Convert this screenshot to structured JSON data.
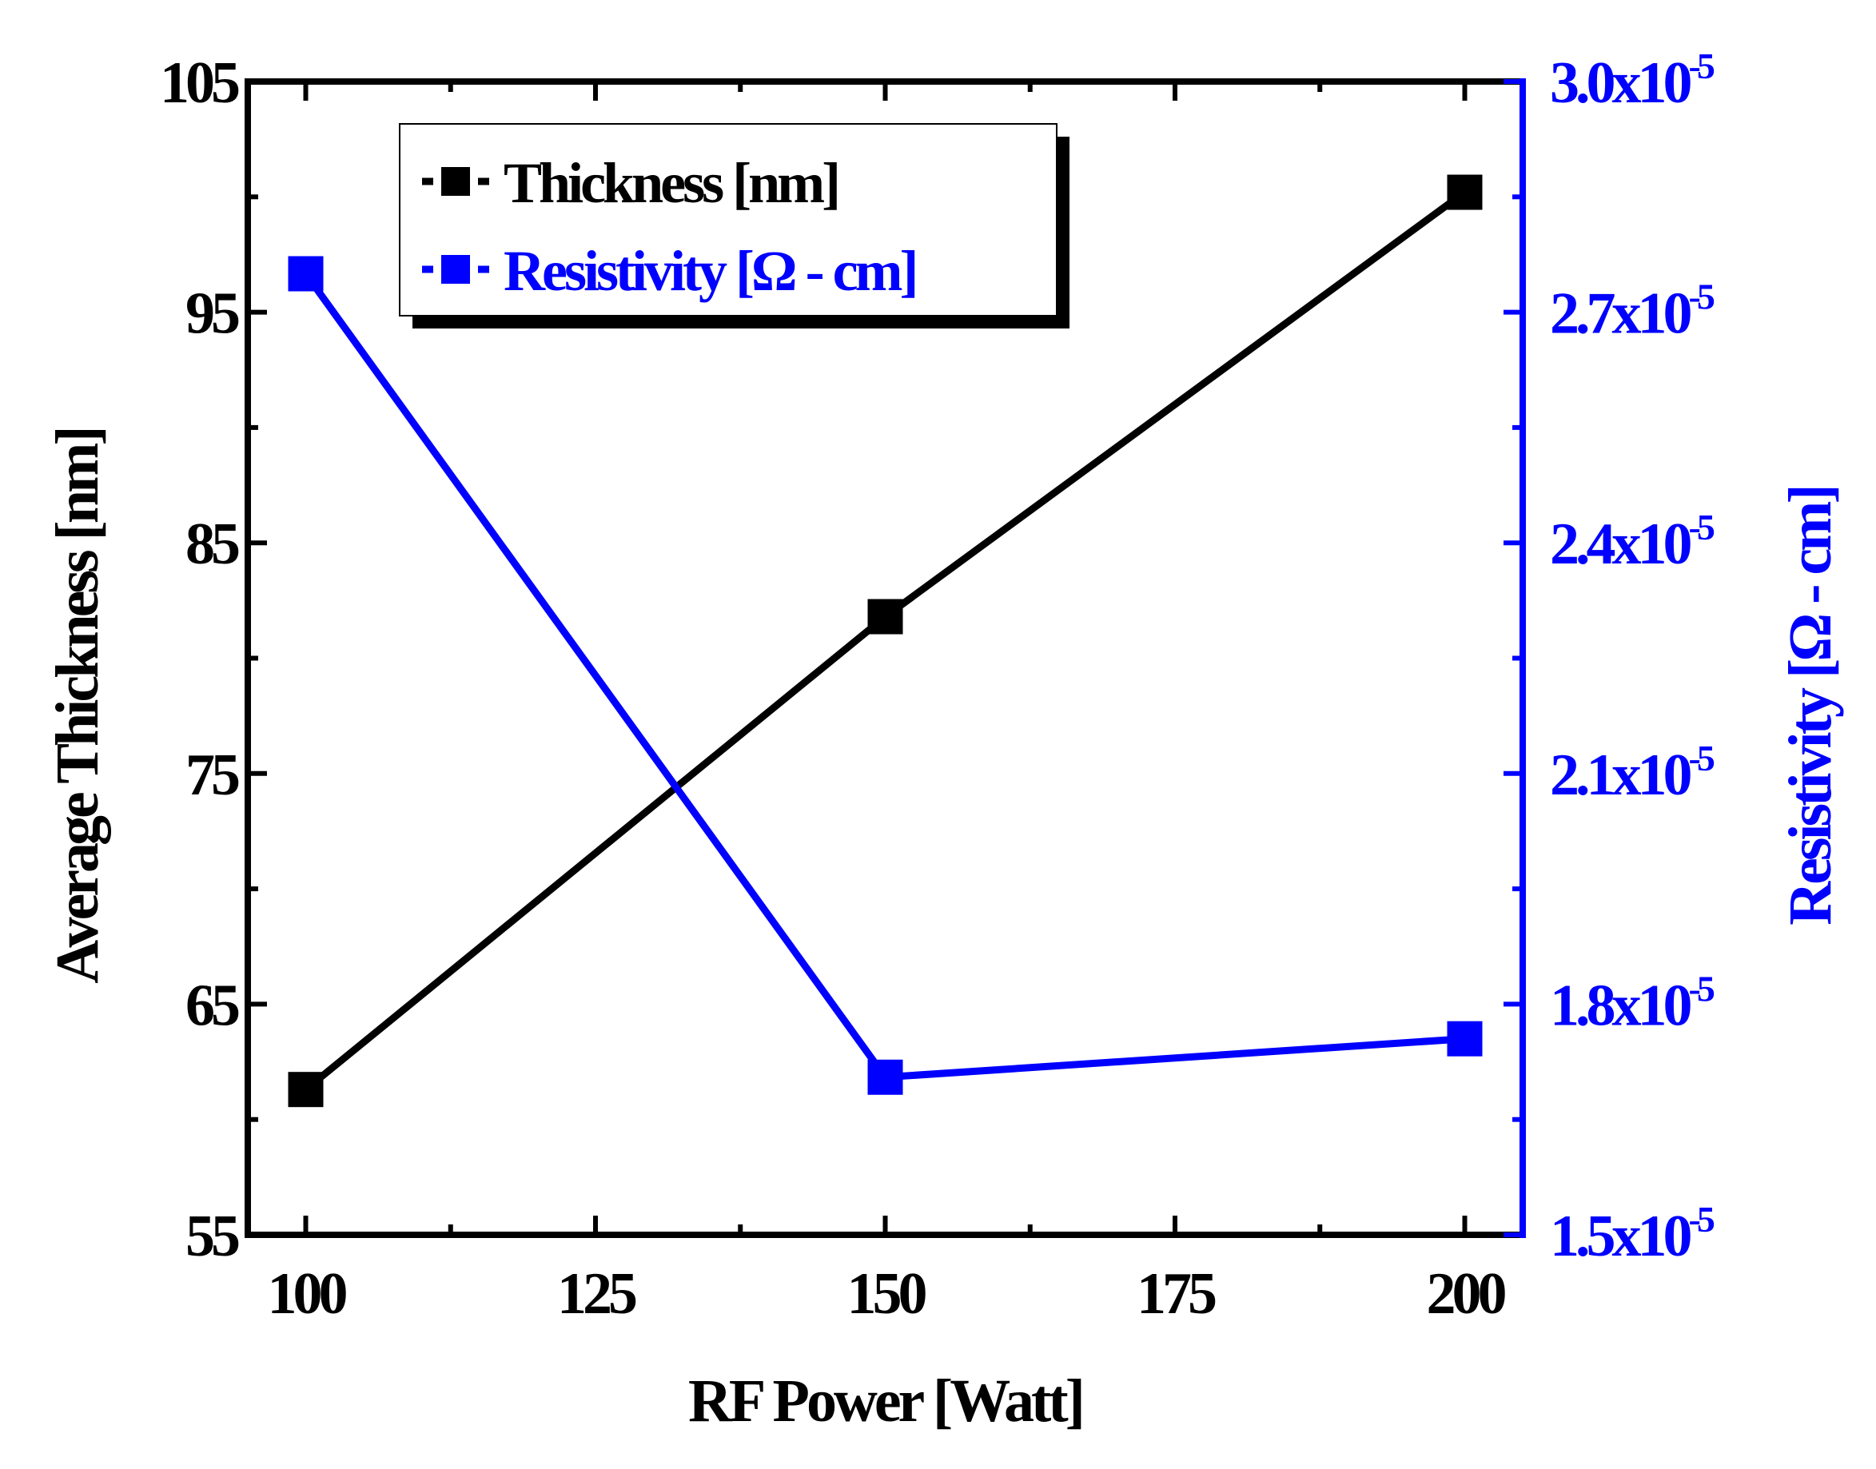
{
  "chart_data": {
    "type": "line",
    "title": "",
    "xlabel": "RF Power [Watt]",
    "x": [
      100,
      150,
      200
    ],
    "xlim": [
      95,
      205
    ],
    "xticks": [
      {
        "value": 100,
        "label": "100"
      },
      {
        "value": 125,
        "label": "125"
      },
      {
        "value": 150,
        "label": "150"
      },
      {
        "value": 175,
        "label": "175"
      },
      {
        "value": 200,
        "label": "200"
      }
    ],
    "xminor": [
      112.5,
      137.5,
      162.5,
      187.5
    ],
    "y_left": {
      "label": "Average Thickness [nm]",
      "lim": [
        55,
        105
      ],
      "ticks": [
        {
          "value": 55,
          "label": "55"
        },
        {
          "value": 65,
          "label": "65"
        },
        {
          "value": 75,
          "label": "75"
        },
        {
          "value": 85,
          "label": "85"
        },
        {
          "value": 95,
          "label": "95"
        },
        {
          "value": 105,
          "label": "105"
        }
      ],
      "minor": [
        60,
        70,
        80,
        90,
        100
      ]
    },
    "y_right": {
      "label": "Resistivity [Ω - cm]",
      "lim": [
        1.5e-05,
        3e-05
      ],
      "ticks": [
        {
          "value": 1.5e-05,
          "mant": "1.5x10",
          "exp": "-5"
        },
        {
          "value": 1.8e-05,
          "mant": "1.8x10",
          "exp": "-5"
        },
        {
          "value": 2.1e-05,
          "mant": "2.1x10",
          "exp": "-5"
        },
        {
          "value": 2.4e-05,
          "mant": "2.4x10",
          "exp": "-5"
        },
        {
          "value": 2.7e-05,
          "mant": "2.7x10",
          "exp": "-5"
        },
        {
          "value": 3e-05,
          "mant": "3.0x10",
          "exp": "-5"
        }
      ],
      "minor": [
        1.65e-05,
        1.95e-05,
        2.25e-05,
        2.55e-05,
        2.85e-05
      ]
    },
    "series": [
      {
        "name": "Thickness [nm]",
        "axis": "left",
        "color": "#000000",
        "values": [
          61.3,
          81.8,
          100.2
        ]
      },
      {
        "name": "Resistivity [Ω - cm]",
        "axis": "right",
        "color": "#0000ff",
        "values": [
          2.75e-05,
          1.705e-05,
          1.755e-05
        ]
      }
    ],
    "legend": {
      "position": "top-left"
    }
  }
}
